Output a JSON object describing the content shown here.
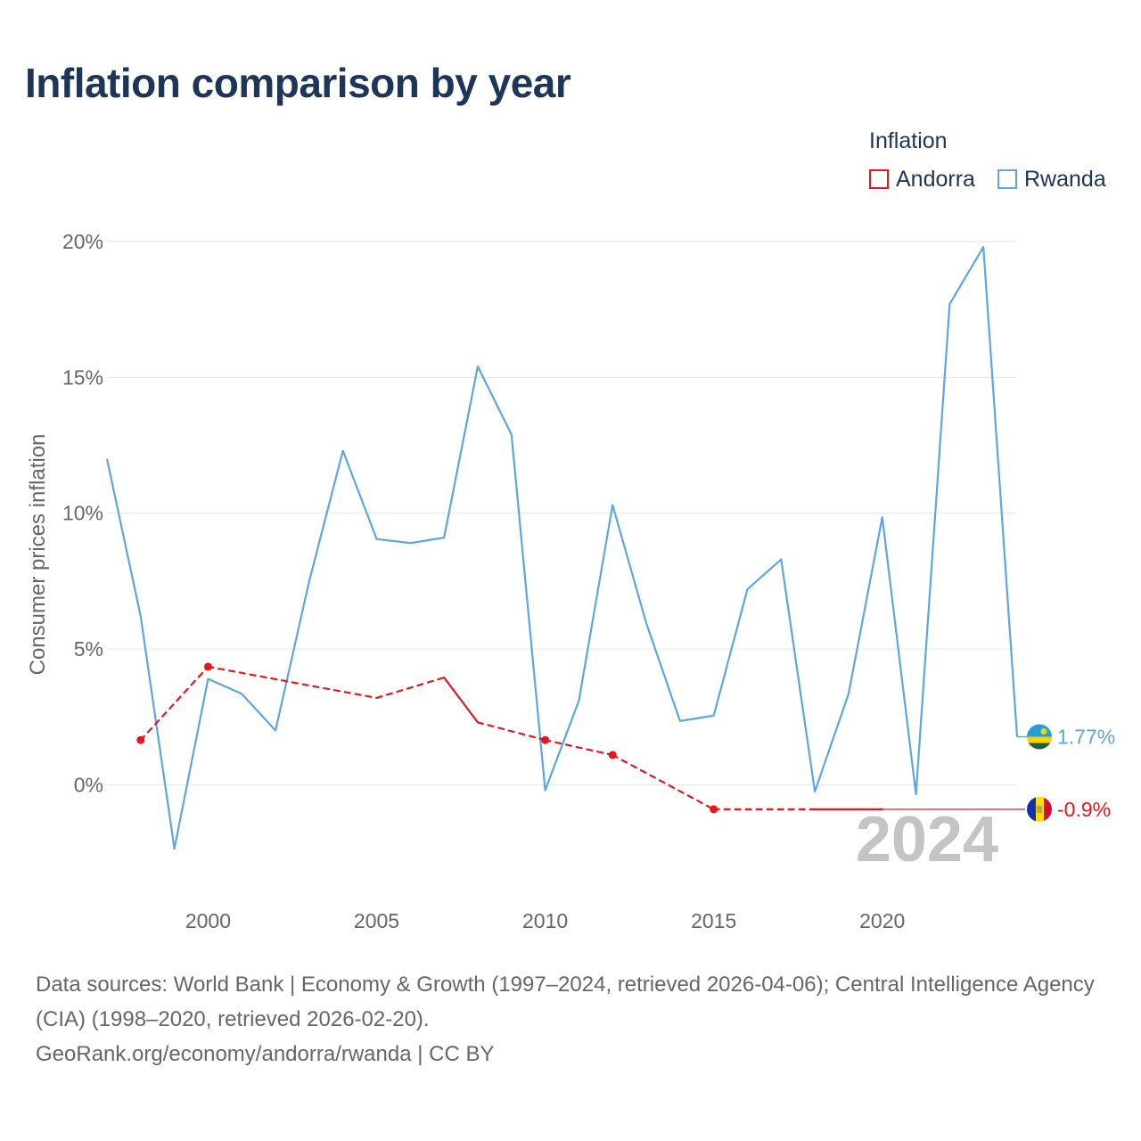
{
  "title": "Inflation comparison by year",
  "legend": {
    "title": "Inflation",
    "items": [
      {
        "label": "Andorra",
        "color": "#e8161b"
      },
      {
        "label": "Rwanda",
        "color": "#5ea5e6"
      }
    ]
  },
  "chart_data": {
    "type": "line",
    "title": "Inflation comparison by year",
    "xlabel": "",
    "ylabel": "Consumer prices inflation",
    "xlim": [
      1997,
      2024
    ],
    "ylim": [
      -3.2,
      22
    ],
    "yticks": [
      0,
      5,
      10,
      15,
      20
    ],
    "ytick_labels": [
      "0%",
      "5%",
      "10%",
      "15%",
      "20%"
    ],
    "xticks": [
      2000,
      2005,
      2010,
      2015,
      2020
    ],
    "xtick_labels": [
      "2000",
      "2005",
      "2010",
      "2015",
      "2020"
    ],
    "year_watermark": "2024",
    "series": [
      {
        "name": "Andorra",
        "color": "#e8161b",
        "points": [
          {
            "x": 1998,
            "y": 1.65
          },
          {
            "x": 2000,
            "y": 4.35
          },
          {
            "x": 2005,
            "y": 3.2
          },
          {
            "x": 2007,
            "y": 3.95
          },
          {
            "x": 2008,
            "y": 2.3
          },
          {
            "x": 2010,
            "y": 1.65
          },
          {
            "x": 2012,
            "y": 1.1
          },
          {
            "x": 2015,
            "y": -0.9
          },
          {
            "x": 2018,
            "y": -0.9
          },
          {
            "x": 2020,
            "y": -0.9
          }
        ],
        "markers": [
          1998,
          2000,
          2010,
          2012,
          2015
        ],
        "end_label": "-0.9%",
        "end_value": -0.9
      },
      {
        "name": "Rwanda",
        "color": "#5ea5e6",
        "points": [
          {
            "x": 1997,
            "y": 12.0
          },
          {
            "x": 1998,
            "y": 6.2
          },
          {
            "x": 1999,
            "y": -2.35
          },
          {
            "x": 2000,
            "y": 3.9
          },
          {
            "x": 2001,
            "y": 3.35
          },
          {
            "x": 2002,
            "y": 2.0
          },
          {
            "x": 2003,
            "y": 7.5
          },
          {
            "x": 2004,
            "y": 12.3
          },
          {
            "x": 2005,
            "y": 9.05
          },
          {
            "x": 2006,
            "y": 8.9
          },
          {
            "x": 2007,
            "y": 9.1
          },
          {
            "x": 2008,
            "y": 15.4
          },
          {
            "x": 2009,
            "y": 12.9
          },
          {
            "x": 2010,
            "y": -0.2
          },
          {
            "x": 2011,
            "y": 3.1
          },
          {
            "x": 2012,
            "y": 10.3
          },
          {
            "x": 2013,
            "y": 5.95
          },
          {
            "x": 2014,
            "y": 2.35
          },
          {
            "x": 2015,
            "y": 2.55
          },
          {
            "x": 2016,
            "y": 7.2
          },
          {
            "x": 2017,
            "y": 8.3
          },
          {
            "x": 2018,
            "y": -0.25
          },
          {
            "x": 2019,
            "y": 3.35
          },
          {
            "x": 2020,
            "y": 9.85
          },
          {
            "x": 2021,
            "y": -0.35
          },
          {
            "x": 2022,
            "y": 17.7
          },
          {
            "x": 2023,
            "y": 19.8
          },
          {
            "x": 2024,
            "y": 1.77
          }
        ],
        "end_label": "1.77%",
        "end_value": 1.77
      }
    ]
  },
  "footer": {
    "line1": "Data sources: World Bank | Economy & Growth (1997–2024, retrieved 2026-04-06); Central Intelligence Agency (CIA) (1998–2020, retrieved 2026-02-20).",
    "line2": "GeoRank.org/economy/andorra/rwanda | CC BY"
  }
}
